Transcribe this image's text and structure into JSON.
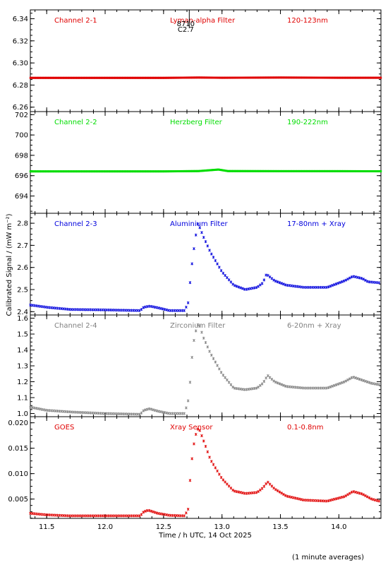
{
  "chart_data": {
    "type": "scatter",
    "x_label": "Time / h UTC, 14 Oct 2025",
    "y_label": "Calibrated Signal / (mW m⁻²)",
    "footnote": "(1 minute averages)",
    "x_range": [
      11.36,
      14.36
    ],
    "x_ticks": [
      11.5,
      12.0,
      12.5,
      13.0,
      13.5,
      14.0
    ],
    "x_tick_labels": [
      "11.5",
      "12.0",
      "12.5",
      "13.0",
      "13.5",
      "14.0"
    ],
    "marker": {
      "label_top": "8710",
      "label_bottom": "C2.7",
      "x": 12.72
    },
    "panels": [
      {
        "channel": "Channel 2-1",
        "filter": "Lyman-alpha Filter",
        "band": "120-123nm",
        "color": "#e00000",
        "ylim": [
          6.256,
          6.348
        ],
        "yticks": [
          6.26,
          6.28,
          6.3,
          6.32,
          6.34
        ],
        "ytick_labels": [
          "6.26",
          "6.28",
          "6.30",
          "6.32",
          "6.34"
        ],
        "series": [
          [
            11.36,
            6.2865
          ],
          [
            12.5,
            6.2865
          ],
          [
            12.8,
            6.2868
          ],
          [
            13.0,
            6.2866
          ],
          [
            13.5,
            6.2868
          ],
          [
            14.0,
            6.2866
          ],
          [
            14.36,
            6.2866
          ]
        ]
      },
      {
        "channel": "Channel 2-2",
        "filter": "Herzberg Filter",
        "band": "190-222nm",
        "color": "#00dd00",
        "ylim": [
          692.3,
          702.3
        ],
        "yticks": [
          694,
          696,
          698,
          700,
          702
        ],
        "ytick_labels": [
          "694",
          "696",
          "698",
          "700",
          "702"
        ],
        "series": [
          [
            11.36,
            696.42
          ],
          [
            12.5,
            696.42
          ],
          [
            12.8,
            696.45
          ],
          [
            12.97,
            696.6
          ],
          [
            13.05,
            696.45
          ],
          [
            13.5,
            696.44
          ],
          [
            14.0,
            696.44
          ],
          [
            14.36,
            696.43
          ]
        ]
      },
      {
        "channel": "Channel 2-3",
        "filter": "Aluminium Filter",
        "band": "17-80nm + Xray",
        "color": "#0000dd",
        "ylim": [
          2.385,
          2.845
        ],
        "yticks": [
          2.4,
          2.5,
          2.6,
          2.7,
          2.8
        ],
        "ytick_labels": [
          "2.4",
          "2.5",
          "2.6",
          "2.7",
          "2.8"
        ],
        "series": [
          [
            11.36,
            2.43
          ],
          [
            11.5,
            2.42
          ],
          [
            11.7,
            2.41
          ],
          [
            12.0,
            2.408
          ],
          [
            12.3,
            2.405
          ],
          [
            12.33,
            2.42
          ],
          [
            12.38,
            2.425
          ],
          [
            12.45,
            2.418
          ],
          [
            12.55,
            2.405
          ],
          [
            12.68,
            2.405
          ],
          [
            12.71,
            2.44
          ],
          [
            12.73,
            2.55
          ],
          [
            12.75,
            2.65
          ],
          [
            12.77,
            2.72
          ],
          [
            12.79,
            2.8
          ],
          [
            12.81,
            2.78
          ],
          [
            12.84,
            2.74
          ],
          [
            12.9,
            2.67
          ],
          [
            13.0,
            2.58
          ],
          [
            13.1,
            2.52
          ],
          [
            13.2,
            2.5
          ],
          [
            13.3,
            2.51
          ],
          [
            13.35,
            2.53
          ],
          [
            13.38,
            2.57
          ],
          [
            13.45,
            2.54
          ],
          [
            13.55,
            2.52
          ],
          [
            13.7,
            2.51
          ],
          [
            13.9,
            2.51
          ],
          [
            14.05,
            2.54
          ],
          [
            14.12,
            2.56
          ],
          [
            14.2,
            2.55
          ],
          [
            14.25,
            2.535
          ],
          [
            14.36,
            2.53
          ]
        ]
      },
      {
        "channel": "Channel 2-4",
        "filter": "Zirconium Filter",
        "band": "6-20nm + Xray",
        "color": "#808080",
        "ylim": [
          0.98,
          1.62
        ],
        "yticks": [
          1.0,
          1.1,
          1.2,
          1.3,
          1.4,
          1.5,
          1.6
        ],
        "ytick_labels": [
          "1.0",
          "1.1",
          "1.2",
          "1.3",
          "1.4",
          "1.5",
          "1.6"
        ],
        "series": [
          [
            11.36,
            1.04
          ],
          [
            11.5,
            1.02
          ],
          [
            11.7,
            1.01
          ],
          [
            12.0,
            1.0
          ],
          [
            12.3,
            0.995
          ],
          [
            12.33,
            1.02
          ],
          [
            12.38,
            1.03
          ],
          [
            12.45,
            1.015
          ],
          [
            12.55,
            1.0
          ],
          [
            12.68,
            1.0
          ],
          [
            12.71,
            1.08
          ],
          [
            12.73,
            1.22
          ],
          [
            12.75,
            1.42
          ],
          [
            12.77,
            1.5
          ],
          [
            12.79,
            1.56
          ],
          [
            12.81,
            1.55
          ],
          [
            12.84,
            1.48
          ],
          [
            12.9,
            1.38
          ],
          [
            13.0,
            1.25
          ],
          [
            13.1,
            1.16
          ],
          [
            13.2,
            1.15
          ],
          [
            13.3,
            1.16
          ],
          [
            13.35,
            1.19
          ],
          [
            13.39,
            1.24
          ],
          [
            13.45,
            1.2
          ],
          [
            13.55,
            1.17
          ],
          [
            13.7,
            1.16
          ],
          [
            13.9,
            1.16
          ],
          [
            14.05,
            1.2
          ],
          [
            14.12,
            1.23
          ],
          [
            14.2,
            1.21
          ],
          [
            14.28,
            1.19
          ],
          [
            14.36,
            1.18
          ]
        ]
      },
      {
        "channel": "GOES",
        "filter": "Xray Sensor",
        "band": "0.1-0.8nm",
        "color": "#e00000",
        "ylim": [
          0.0012,
          0.0212
        ],
        "yticks": [
          0.005,
          0.01,
          0.015,
          0.02
        ],
        "ytick_labels": [
          "0.005",
          "0.010",
          "0.015",
          "0.020"
        ],
        "series": [
          [
            11.36,
            0.0022
          ],
          [
            11.5,
            0.0019
          ],
          [
            11.7,
            0.0017
          ],
          [
            12.0,
            0.0017
          ],
          [
            12.3,
            0.0017
          ],
          [
            12.33,
            0.0025
          ],
          [
            12.37,
            0.0028
          ],
          [
            12.45,
            0.0022
          ],
          [
            12.55,
            0.0018
          ],
          [
            12.68,
            0.0017
          ],
          [
            12.71,
            0.003
          ],
          [
            12.73,
            0.0098
          ],
          [
            12.75,
            0.0145
          ],
          [
            12.77,
            0.0172
          ],
          [
            12.79,
            0.0188
          ],
          [
            12.81,
            0.0185
          ],
          [
            12.85,
            0.016
          ],
          [
            12.9,
            0.0128
          ],
          [
            13.0,
            0.009
          ],
          [
            13.1,
            0.0066
          ],
          [
            13.2,
            0.0061
          ],
          [
            13.3,
            0.0063
          ],
          [
            13.35,
            0.0072
          ],
          [
            13.39,
            0.0084
          ],
          [
            13.45,
            0.007
          ],
          [
            13.55,
            0.0056
          ],
          [
            13.7,
            0.0048
          ],
          [
            13.9,
            0.0046
          ],
          [
            14.05,
            0.0055
          ],
          [
            14.12,
            0.0065
          ],
          [
            14.2,
            0.006
          ],
          [
            14.28,
            0.005
          ],
          [
            14.36,
            0.0045
          ]
        ]
      }
    ]
  }
}
